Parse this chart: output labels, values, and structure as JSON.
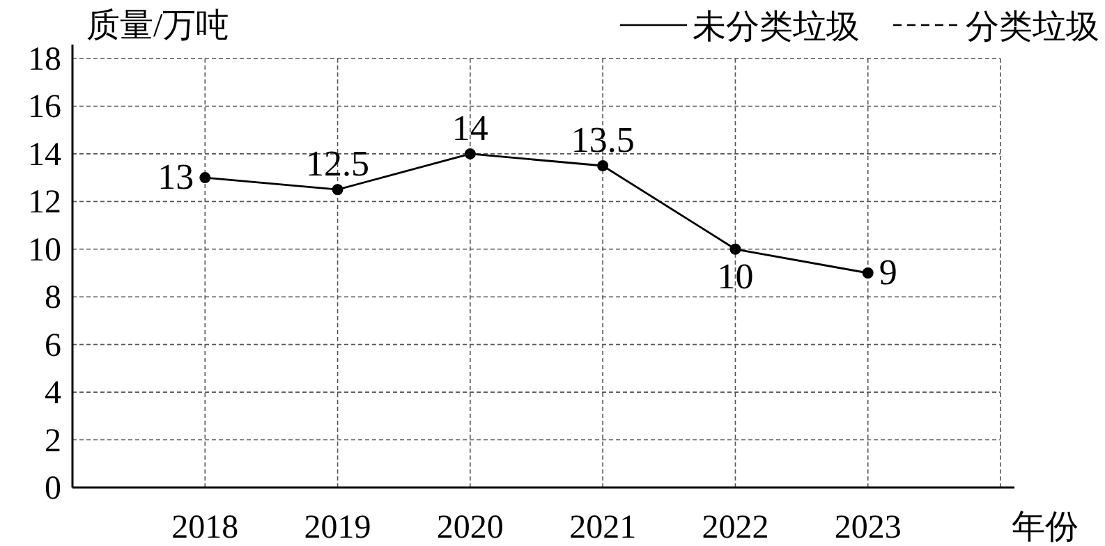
{
  "chart_data": {
    "type": "line",
    "ylabel": "质量/万吨",
    "xlabel": "年份",
    "x": [
      2018,
      2019,
      2020,
      2021,
      2022,
      2023
    ],
    "series": [
      {
        "name": "未分类垃圾",
        "color": "#000000",
        "values": [
          13,
          12.5,
          14,
          13.5,
          10,
          9
        ],
        "line_style": "solid",
        "marker": "circle"
      },
      {
        "name": "分类垃圾",
        "color": "#000000",
        "values": [
          null,
          null,
          null,
          null,
          null,
          null
        ],
        "line_style": "dashed",
        "marker": "none"
      }
    ],
    "xlim": [
      2017,
      2024
    ],
    "xticks": [
      2018,
      2019,
      2020,
      2021,
      2022,
      2023,
      {
        "value": 2024,
        "label": null
      }
    ],
    "ylim": [
      0,
      18
    ],
    "yticks": [
      0,
      2,
      4,
      6,
      8,
      10,
      12,
      14,
      16,
      18
    ],
    "grid": true,
    "legend": "top right",
    "data_labels": true
  }
}
